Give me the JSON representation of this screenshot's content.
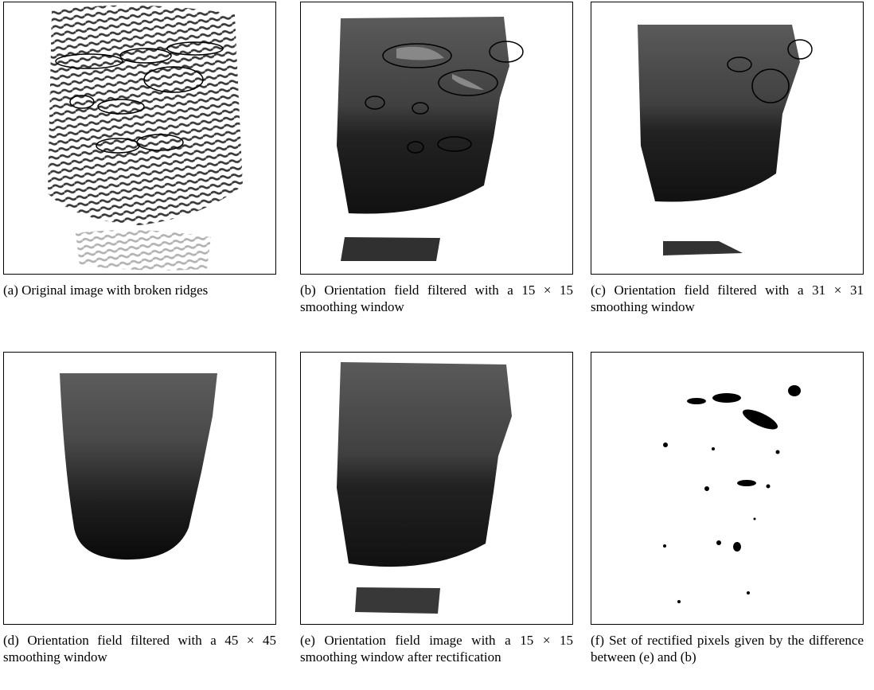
{
  "figure": {
    "panels": [
      {
        "caption": "(a) Original image with broken ridges"
      },
      {
        "caption": "(b) Orientation field filtered with a 15 × 15 smoothing window"
      },
      {
        "caption": "(c) Orientation field filtered with a 31 × 31 smoothing window"
      },
      {
        "caption": "(d) Orientation field filtered with a 45 × 45 smoothing window"
      },
      {
        "caption": "(e) Orientation field image with a 15 × 15 smoothing window after rectification"
      },
      {
        "caption": "(f) Set of rectified pixels given by the difference between (e) and (b)"
      }
    ]
  }
}
